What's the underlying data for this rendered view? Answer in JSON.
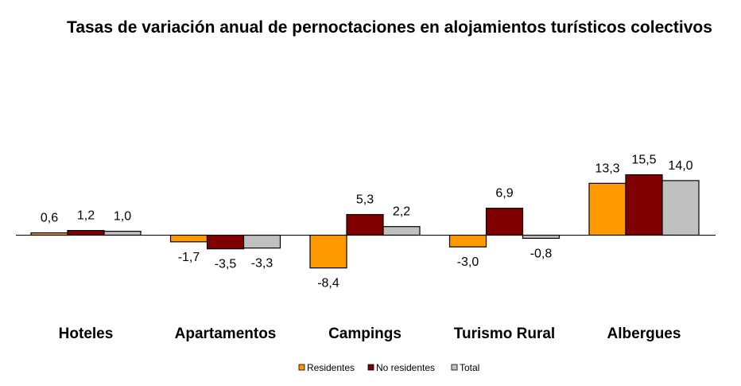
{
  "chart_data": {
    "type": "bar",
    "title": "Tasas de variación anual de pernoctaciones en alojamientos turísticos colectivos",
    "categories": [
      "Hoteles",
      "Apartamentos",
      "Campings",
      "Turismo Rural",
      "Albergues"
    ],
    "series": [
      {
        "name": "Residentes",
        "color": "#FF9900",
        "values": [
          0.6,
          -1.7,
          -8.4,
          -3.0,
          13.3
        ],
        "labels": [
          "0,6",
          "-1,7",
          "-8,4",
          "-3,0",
          "13,3"
        ]
      },
      {
        "name": "No residentes",
        "color": "#800000",
        "values": [
          1.2,
          -3.5,
          5.3,
          6.9,
          15.5
        ],
        "labels": [
          "1,2",
          "-3,5",
          "5,3",
          "6,9",
          "15,5"
        ]
      },
      {
        "name": "Total",
        "color": "#C0C0C0",
        "values": [
          1.0,
          -3.3,
          2.2,
          -0.8,
          14.0
        ],
        "labels": [
          "1,0",
          "-3,3",
          "2,2",
          "-0,8",
          "14,0"
        ]
      }
    ],
    "xlabel": "",
    "ylabel": "",
    "grid": false,
    "legend_position": "bottom"
  }
}
